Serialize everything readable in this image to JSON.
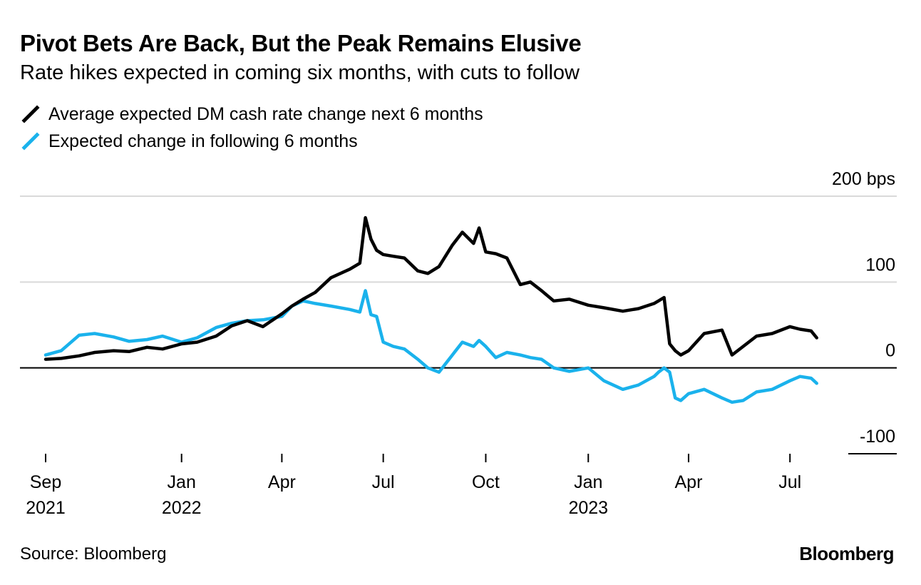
{
  "colors": {
    "series_black": "#000000",
    "series_blue": "#1ab2ec",
    "grid": "#d9d9d9",
    "zero": "#000000"
  },
  "header": {
    "title": "Pivot Bets Are Back, But the Peak Remains Elusive",
    "subtitle": "Rate hikes expected in coming six months, with cuts to follow"
  },
  "footer": {
    "source": "Source: Bloomberg",
    "brand": "Bloomberg"
  },
  "chart_data": {
    "type": "line",
    "title": "Pivot Bets Are Back, But the Peak Remains Elusive",
    "subtitle": "Rate hikes expected in coming six months, with cuts to follow",
    "ylim": [
      -100,
      200
    ],
    "yticks": [
      {
        "value": 200,
        "label": "200 bps"
      },
      {
        "value": 100,
        "label": "100"
      },
      {
        "value": 0,
        "label": "0"
      },
      {
        "value": -100,
        "label": "-100"
      }
    ],
    "x_unit": "date",
    "xlim": [
      "2021-09-01",
      "2023-10-01"
    ],
    "xticks": [
      {
        "date": "2021-09-01",
        "label": [
          "Sep",
          "2021"
        ]
      },
      {
        "date": "2022-01-01",
        "label": [
          "Jan",
          "2022"
        ]
      },
      {
        "date": "2022-04-01",
        "label": [
          "Apr",
          ""
        ]
      },
      {
        "date": "2022-07-01",
        "label": [
          "Jul",
          ""
        ]
      },
      {
        "date": "2022-10-01",
        "label": [
          "Oct",
          ""
        ]
      },
      {
        "date": "2023-01-01",
        "label": [
          "Jan",
          "2023"
        ]
      },
      {
        "date": "2023-04-01",
        "label": [
          "Apr",
          ""
        ]
      },
      {
        "date": "2023-07-01",
        "label": [
          "Jul",
          ""
        ]
      }
    ],
    "grid": true,
    "legend_position": "top-left",
    "series": [
      {
        "name": "Average expected DM cash rate change next 6 months",
        "color": "#000000",
        "x": [
          "2021-09-01",
          "2021-09-15",
          "2021-10-01",
          "2021-10-15",
          "2021-11-01",
          "2021-11-15",
          "2021-12-01",
          "2021-12-15",
          "2022-01-01",
          "2022-01-15",
          "2022-02-01",
          "2022-02-15",
          "2022-03-01",
          "2022-03-15",
          "2022-04-01",
          "2022-04-10",
          "2022-04-20",
          "2022-05-01",
          "2022-05-15",
          "2022-06-01",
          "2022-06-10",
          "2022-06-15",
          "2022-06-20",
          "2022-06-25",
          "2022-07-01",
          "2022-07-10",
          "2022-07-20",
          "2022-08-01",
          "2022-08-10",
          "2022-08-20",
          "2022-09-01",
          "2022-09-10",
          "2022-09-20",
          "2022-09-25",
          "2022-10-01",
          "2022-10-10",
          "2022-10-20",
          "2022-11-01",
          "2022-11-10",
          "2022-11-20",
          "2022-12-01",
          "2022-12-15",
          "2023-01-01",
          "2023-01-15",
          "2023-02-01",
          "2023-02-15",
          "2023-03-01",
          "2023-03-05",
          "2023-03-10",
          "2023-03-15",
          "2023-03-20",
          "2023-03-25",
          "2023-04-01",
          "2023-04-15",
          "2023-05-01",
          "2023-05-10",
          "2023-05-20",
          "2023-06-01",
          "2023-06-15",
          "2023-07-01",
          "2023-07-10",
          "2023-07-20",
          "2023-07-25"
        ],
        "values": [
          10,
          11,
          14,
          18,
          20,
          19,
          24,
          22,
          28,
          30,
          37,
          49,
          55,
          48,
          63,
          72,
          80,
          88,
          105,
          115,
          122,
          175,
          150,
          137,
          132,
          130,
          128,
          113,
          110,
          118,
          143,
          158,
          145,
          163,
          135,
          133,
          128,
          97,
          100,
          90,
          78,
          80,
          73,
          70,
          66,
          69,
          75,
          78,
          82,
          28,
          20,
          15,
          20,
          40,
          44,
          15,
          25,
          37,
          40,
          48,
          45,
          43,
          35
        ],
        "legend_label": "Average expected DM cash rate change next 6 months"
      },
      {
        "name": "Expected change in following 6 months",
        "color": "#1ab2ec",
        "x": [
          "2021-09-01",
          "2021-09-15",
          "2021-10-01",
          "2021-10-15",
          "2021-11-01",
          "2021-11-15",
          "2021-12-01",
          "2021-12-15",
          "2022-01-01",
          "2022-01-15",
          "2022-02-01",
          "2022-02-15",
          "2022-03-01",
          "2022-03-15",
          "2022-04-01",
          "2022-04-10",
          "2022-04-20",
          "2022-05-01",
          "2022-05-15",
          "2022-06-01",
          "2022-06-10",
          "2022-06-15",
          "2022-06-20",
          "2022-06-25",
          "2022-07-01",
          "2022-07-10",
          "2022-07-20",
          "2022-08-01",
          "2022-08-10",
          "2022-08-20",
          "2022-09-01",
          "2022-09-10",
          "2022-09-20",
          "2022-09-25",
          "2022-10-01",
          "2022-10-10",
          "2022-10-20",
          "2022-11-01",
          "2022-11-10",
          "2022-11-20",
          "2022-12-01",
          "2022-12-15",
          "2023-01-01",
          "2023-01-15",
          "2023-02-01",
          "2023-02-15",
          "2023-03-01",
          "2023-03-05",
          "2023-03-10",
          "2023-03-15",
          "2023-03-20",
          "2023-03-25",
          "2023-04-01",
          "2023-04-15",
          "2023-05-01",
          "2023-05-10",
          "2023-05-20",
          "2023-06-01",
          "2023-06-15",
          "2023-07-01",
          "2023-07-10",
          "2023-07-20",
          "2023-07-25"
        ],
        "values": [
          15,
          20,
          38,
          40,
          36,
          31,
          33,
          37,
          30,
          35,
          47,
          52,
          55,
          56,
          60,
          72,
          78,
          75,
          72,
          68,
          65,
          90,
          62,
          60,
          30,
          25,
          22,
          10,
          0,
          -5,
          15,
          30,
          25,
          32,
          25,
          12,
          18,
          15,
          12,
          10,
          0,
          -4,
          0,
          -15,
          -25,
          -20,
          -10,
          -5,
          0,
          -5,
          -35,
          -38,
          -30,
          -25,
          -35,
          -40,
          -38,
          -28,
          -25,
          -15,
          -10,
          -12,
          -18
        ],
        "legend_label": "Expected change in following 6 months"
      }
    ]
  }
}
